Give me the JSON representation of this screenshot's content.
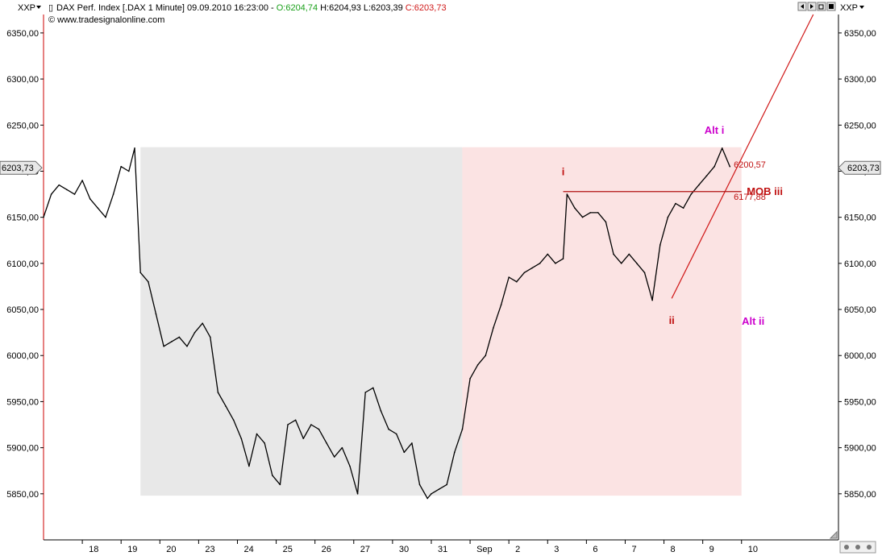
{
  "window": {
    "menu_left": "XXP",
    "menu_right": "XXP",
    "title": "DAX Perf. Index [.DAX  1 Minute] 09.09.2010 16:23:00 - ",
    "open": "O:6204,74",
    "high": "H:6204,93",
    "low": "L:6203,39",
    "close": "C:6203,73",
    "copyright": "© www.tradesignalonline.com",
    "open_color": "#1aa01a",
    "close_color": "#d01818",
    "nav_buttons": [
      "arrow-left-icon",
      "arrow-right-icon",
      "window-restore-icon",
      "zoom-icon"
    ]
  },
  "chart_data": {
    "type": "line",
    "instrument": "DAX Perf. Index [.DAX  1 Minute]",
    "ylim": [
      5800,
      6370
    ],
    "y_ticks": [
      "6350,00",
      "6300,00",
      "6250,00",
      "6200,00",
      "6150,00",
      "6100,00",
      "6050,00",
      "6000,00",
      "5950,00",
      "5900,00",
      "5850,00"
    ],
    "y_tick_values": [
      6350,
      6300,
      6250,
      6200,
      6150,
      6100,
      6050,
      6000,
      5950,
      5900,
      5850
    ],
    "x_ticks": [
      "18",
      "19",
      "20",
      "23",
      "24",
      "25",
      "26",
      "27",
      "30",
      "31",
      "Sep",
      "2",
      "3",
      "6",
      "7",
      "8",
      "9",
      "10"
    ],
    "x_tick_index": [
      1,
      2,
      3,
      4,
      5,
      6,
      7,
      8,
      9,
      10,
      11,
      12,
      13,
      14,
      15,
      16,
      17,
      18
    ],
    "last_price_label": "6203,73",
    "last_price": 6203.73,
    "series": [
      {
        "x": [
          0,
          0.2,
          0.4,
          0.6,
          0.8,
          1.0,
          1.2,
          1.4,
          1.6,
          1.8,
          2.0,
          2.2,
          2.35,
          2.5,
          2.7,
          2.9,
          3.1,
          3.3,
          3.5,
          3.7,
          3.9,
          4.1,
          4.3,
          4.5,
          4.7,
          4.9,
          5.1,
          5.3,
          5.5,
          5.7,
          5.9,
          6.1,
          6.3,
          6.5,
          6.7,
          6.9,
          7.1,
          7.3,
          7.5,
          7.7,
          7.9,
          8.1,
          8.3,
          8.5,
          8.7,
          8.9,
          9.1,
          9.3,
          9.5,
          9.7,
          9.9,
          10.0,
          10.2,
          10.4,
          10.6,
          10.8,
          11.0,
          11.2,
          11.4,
          11.6,
          11.8,
          12.0,
          12.2,
          12.4,
          12.6,
          12.8,
          13.0,
          13.2,
          13.4,
          13.5,
          13.7,
          13.9,
          14.1,
          14.3,
          14.5,
          14.7,
          14.9,
          15.1,
          15.3,
          15.5,
          15.7,
          15.9,
          16.1,
          16.3,
          16.5,
          16.7,
          16.9,
          17.1,
          17.3,
          17.5,
          17.7
        ],
        "values": [
          6150,
          6175,
          6185,
          6180,
          6175,
          6190,
          6170,
          6160,
          6150,
          6175,
          6205,
          6200,
          6225,
          6090,
          6080,
          6045,
          6010,
          6015,
          6020,
          6010,
          6025,
          6035,
          6020,
          5960,
          5945,
          5930,
          5910,
          5880,
          5915,
          5905,
          5870,
          5860,
          5925,
          5930,
          5910,
          5925,
          5920,
          5905,
          5890,
          5900,
          5880,
          5850,
          5960,
          5965,
          5940,
          5920,
          5915,
          5895,
          5905,
          5860,
          5845,
          5850,
          5855,
          5860,
          5895,
          5920,
          5975,
          5990,
          6000,
          6030,
          6055,
          6085,
          6080,
          6090,
          6095,
          6100,
          6110,
          6100,
          6105,
          6175,
          6160,
          6150,
          6155,
          6155,
          6145,
          6110,
          6100,
          6110,
          6100,
          6090,
          6060,
          6120,
          6150,
          6165,
          6160,
          6175,
          6185,
          6195,
          6205,
          6225,
          6205
        ]
      }
    ],
    "zones": [
      {
        "name": "gray-zone",
        "x_start": 2.5,
        "x_end": 10.8,
        "y_low": 5848,
        "y_high": 6226,
        "color": "#e8e8e8"
      },
      {
        "name": "pink-zone",
        "x_start": 10.8,
        "x_end": 18.0,
        "y_low": 5848,
        "y_high": 6226,
        "color": "#fbe3e3"
      }
    ],
    "lines": [
      {
        "name": "wave-line",
        "x1": 16.2,
        "y1": 6062,
        "x2": 19.85,
        "y2": 6370,
        "color": "#d01818"
      },
      {
        "name": "mob-level-line",
        "x1": 13.4,
        "y1": 6177.88,
        "x2": 18.0,
        "y2": 6177.88,
        "color": "#b01010"
      }
    ],
    "annotations": [
      {
        "name": "wave-i-label",
        "text": "i",
        "x": 13.4,
        "y": 6199,
        "color": "#c01010"
      },
      {
        "name": "wave-ii-label",
        "text": "ii",
        "x": 16.2,
        "y": 6038,
        "color": "#c01010"
      },
      {
        "name": "alt-i-label",
        "text": "Alt i",
        "x": 17.3,
        "y": 6244,
        "color": "#cc00cc"
      },
      {
        "name": "alt-ii-label",
        "text": "Alt ii",
        "x": 18.3,
        "y": 6037,
        "color": "#cc00cc"
      },
      {
        "name": "mob-iii-label",
        "text": "MOB iii",
        "x": 18.6,
        "y": 6177.88,
        "color": "#c01010"
      },
      {
        "name": "level-6200-label",
        "text": "6200,57",
        "x": 17.8,
        "y": 6200.57,
        "color": "#c01010"
      },
      {
        "name": "level-6177-label",
        "text": "6177,88",
        "x": 17.8,
        "y": 6177.88,
        "color": "#c01010"
      }
    ],
    "grid": false,
    "colors": {
      "price": "#000000",
      "axis": "#cc0000",
      "last_price_bg": "#e8e8e8"
    }
  }
}
